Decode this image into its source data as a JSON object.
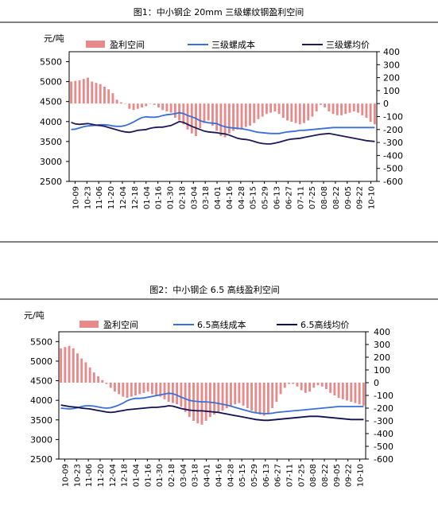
{
  "chart_data": [
    {
      "type": "bar+line",
      "title": "图1：中小钢企 20mm 三级螺纹钢盈利空间",
      "ylabel": "元/吨",
      "y_left_ticks": [
        "5500",
        "5000",
        "4500",
        "4000",
        "3500",
        "3000",
        "2500"
      ],
      "y_right_ticks": [
        "400",
        "300",
        "200",
        "100",
        "0",
        "-100",
        "-200",
        "-300",
        "-400",
        "-500",
        "-600"
      ],
      "ylim_left": [
        2500,
        5750
      ],
      "ylim_right": [
        -600,
        400
      ],
      "x_ticks": [
        "10-09",
        "10-23",
        "11-06",
        "11-20",
        "12-04",
        "12-18",
        "01-04",
        "01-16",
        "01-30",
        "02-18",
        "03-04",
        "03-18",
        "04-01",
        "04-16",
        "04-28",
        "05-15",
        "05-29",
        "06-13",
        "06-27",
        "07-11",
        "07-25",
        "08-08",
        "08-22",
        "09-05",
        "09-22",
        "10-10"
      ],
      "legend": [
        "盈利空间",
        "三级螺成本",
        "三级螺均价"
      ],
      "colors": {
        "bar": "#e88a8a",
        "cost": "#3a6fd8",
        "price": "#1f1a55"
      },
      "series": [
        {
          "name": "盈利空间",
          "axis": "right",
          "values": [
            170,
            175,
            180,
            190,
            200,
            170,
            160,
            150,
            130,
            110,
            80,
            30,
            10,
            0,
            -40,
            -50,
            -40,
            -30,
            -20,
            0,
            -10,
            -30,
            -50,
            -60,
            -70,
            -110,
            -130,
            -160,
            -200,
            -230,
            -250,
            -190,
            -150,
            -130,
            -170,
            -210,
            -250,
            -260,
            -230,
            -210,
            -200,
            -190,
            -180,
            -170,
            -150,
            -120,
            -100,
            -80,
            -70,
            -60,
            -80,
            -110,
            -130,
            -140,
            -150,
            -160,
            -150,
            -130,
            -100,
            -60,
            -10,
            -30,
            -60,
            -80,
            -90,
            -90,
            -80,
            -70,
            -60,
            -70,
            -90,
            -110,
            -140,
            -160
          ]
        },
        {
          "name": "三级螺成本",
          "axis": "left",
          "values": [
            3800,
            3810,
            3840,
            3870,
            3890,
            3900,
            3910,
            3920,
            3920,
            3910,
            3890,
            3880,
            3880,
            3900,
            3940,
            3990,
            4050,
            4100,
            4120,
            4110,
            4110,
            4120,
            4150,
            4170,
            4180,
            4200,
            4220,
            4200,
            4150,
            4120,
            4080,
            4020,
            3990,
            3970,
            3960,
            3950,
            3900,
            3870,
            3850,
            3840,
            3830,
            3820,
            3800,
            3780,
            3750,
            3730,
            3720,
            3710,
            3700,
            3700,
            3700,
            3720,
            3740,
            3750,
            3760,
            3780,
            3780,
            3790,
            3800,
            3810,
            3820,
            3830,
            3840,
            3850,
            3850,
            3850,
            3850,
            3850,
            3850,
            3850,
            3850,
            3850,
            3850,
            3850
          ]
        },
        {
          "name": "三级螺均价",
          "axis": "left",
          "values": [
            3980,
            3940,
            3930,
            3940,
            3950,
            3930,
            3910,
            3900,
            3880,
            3850,
            3820,
            3790,
            3760,
            3740,
            3730,
            3750,
            3780,
            3790,
            3800,
            3830,
            3850,
            3860,
            3860,
            3880,
            3900,
            3950,
            4000,
            3980,
            3930,
            3880,
            3840,
            3800,
            3760,
            3740,
            3730,
            3720,
            3700,
            3690,
            3660,
            3620,
            3580,
            3560,
            3550,
            3530,
            3500,
            3470,
            3450,
            3440,
            3440,
            3460,
            3480,
            3510,
            3540,
            3560,
            3570,
            3580,
            3600,
            3620,
            3640,
            3660,
            3680,
            3690,
            3700,
            3680,
            3660,
            3640,
            3620,
            3600,
            3580,
            3560,
            3540,
            3520,
            3510,
            3500
          ]
        }
      ]
    },
    {
      "type": "bar+line",
      "title": "图2：中小钢企 6.5 高线盈利空间",
      "ylabel": "元/吨",
      "y_left_ticks": [
        "5500",
        "5000",
        "4500",
        "4000",
        "3500",
        "3000",
        "2500"
      ],
      "y_right_ticks": [
        "400",
        "300",
        "200",
        "100",
        "0",
        "-100",
        "-200",
        "-300",
        "-400",
        "-500",
        "-600"
      ],
      "ylim_left": [
        2500,
        5750
      ],
      "ylim_right": [
        -600,
        400
      ],
      "x_ticks": [
        "10-09",
        "10-23",
        "11-06",
        "11-20",
        "12-04",
        "12-18",
        "01-04",
        "01-16",
        "01-30",
        "02-18",
        "03-04",
        "03-18",
        "04-01",
        "04-16",
        "04-28",
        "05-15",
        "05-29",
        "06-13",
        "06-27",
        "07-11",
        "07-25",
        "08-08",
        "08-22",
        "09-05",
        "09-22",
        "10-10"
      ],
      "legend": [
        "盈利空间",
        "6.5高线成本",
        "6.5高线均价"
      ],
      "colors": {
        "bar": "#e88a8a",
        "cost": "#3a6fd8",
        "price": "#101055"
      },
      "series": [
        {
          "name": "盈利空间",
          "axis": "right",
          "values": [
            270,
            280,
            290,
            270,
            230,
            190,
            160,
            120,
            80,
            50,
            20,
            -10,
            -40,
            -70,
            -90,
            -110,
            -120,
            -110,
            -100,
            -90,
            -80,
            -70,
            -90,
            -100,
            -110,
            -130,
            -150,
            -160,
            -170,
            -190,
            -230,
            -270,
            -300,
            -320,
            -330,
            -300,
            -270,
            -250,
            -230,
            -220,
            -200,
            -180,
            -170,
            -160,
            -180,
            -200,
            -220,
            -240,
            -250,
            -260,
            -240,
            -200,
            -150,
            -90,
            -40,
            -10,
            -10,
            -30,
            -60,
            -80,
            -70,
            -40,
            -20,
            -30,
            -50,
            -80,
            -100,
            -120,
            -130,
            -140,
            -150,
            -160,
            -170,
            -180
          ]
        },
        {
          "name": "6.5高线成本",
          "axis": "left",
          "values": [
            3800,
            3790,
            3780,
            3790,
            3810,
            3840,
            3860,
            3860,
            3850,
            3830,
            3810,
            3800,
            3810,
            3840,
            3880,
            3930,
            3990,
            4030,
            4050,
            4050,
            4060,
            4080,
            4100,
            4120,
            4140,
            4160,
            4180,
            4170,
            4130,
            4080,
            4040,
            4000,
            3980,
            3970,
            3960,
            3960,
            3950,
            3940,
            3920,
            3900,
            3880,
            3850,
            3820,
            3790,
            3760,
            3730,
            3700,
            3680,
            3670,
            3660,
            3660,
            3670,
            3690,
            3700,
            3710,
            3720,
            3730,
            3740,
            3750,
            3760,
            3770,
            3780,
            3790,
            3800,
            3810,
            3820,
            3830,
            3840,
            3840,
            3840,
            3840,
            3840,
            3840,
            3840
          ]
        },
        {
          "name": "6.5高线均价",
          "axis": "left",
          "values": [
            3880,
            3860,
            3840,
            3830,
            3820,
            3800,
            3790,
            3780,
            3760,
            3740,
            3720,
            3700,
            3690,
            3700,
            3720,
            3740,
            3760,
            3770,
            3780,
            3790,
            3800,
            3810,
            3820,
            3820,
            3830,
            3840,
            3860,
            3850,
            3820,
            3790,
            3770,
            3750,
            3740,
            3730,
            3730,
            3720,
            3710,
            3700,
            3690,
            3670,
            3650,
            3630,
            3610,
            3590,
            3570,
            3550,
            3530,
            3510,
            3500,
            3490,
            3490,
            3500,
            3510,
            3520,
            3530,
            3540,
            3550,
            3560,
            3570,
            3580,
            3590,
            3590,
            3590,
            3580,
            3570,
            3560,
            3550,
            3540,
            3530,
            3520,
            3510,
            3510,
            3510,
            3510
          ]
        }
      ]
    }
  ]
}
